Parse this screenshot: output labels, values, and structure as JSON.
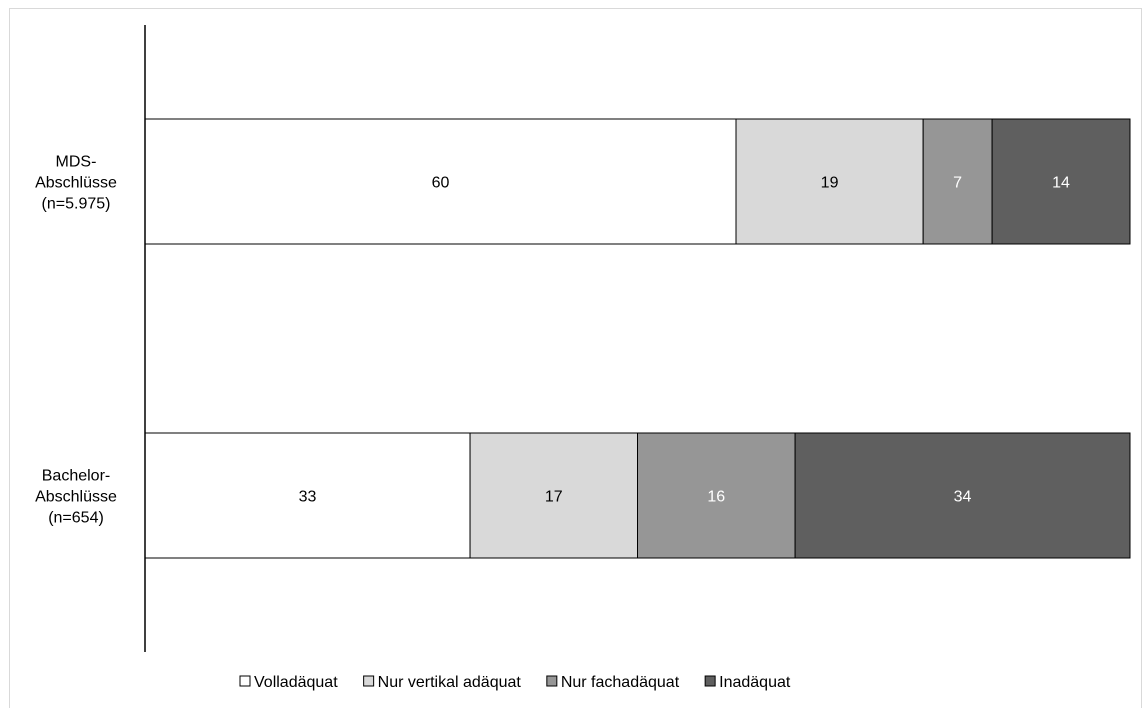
{
  "chart_data": {
    "type": "bar",
    "orientation": "horizontal",
    "stacked": true,
    "categories": [
      [
        "MDS-",
        "Abschlüsse",
        "(n=5.975)"
      ],
      [
        "Bachelor-",
        "Abschlüsse",
        "(n=654)"
      ]
    ],
    "series": [
      {
        "name": "Volladäquat",
        "color": "#ffffff",
        "label_color": "#000000",
        "values": [
          60,
          33
        ]
      },
      {
        "name": "Nur vertikal adäquat",
        "color": "#d9d9d9",
        "label_color": "#000000",
        "values": [
          19,
          17
        ]
      },
      {
        "name": "Nur fachadäquat",
        "color": "#969696",
        "label_color": "#ffffff",
        "values": [
          7,
          16
        ]
      },
      {
        "name": "Inadäquat",
        "color": "#5f5f5f",
        "label_color": "#ffffff",
        "values": [
          14,
          34
        ]
      }
    ],
    "xlim": [
      0,
      100
    ],
    "grid": false,
    "legend_position": "bottom"
  }
}
